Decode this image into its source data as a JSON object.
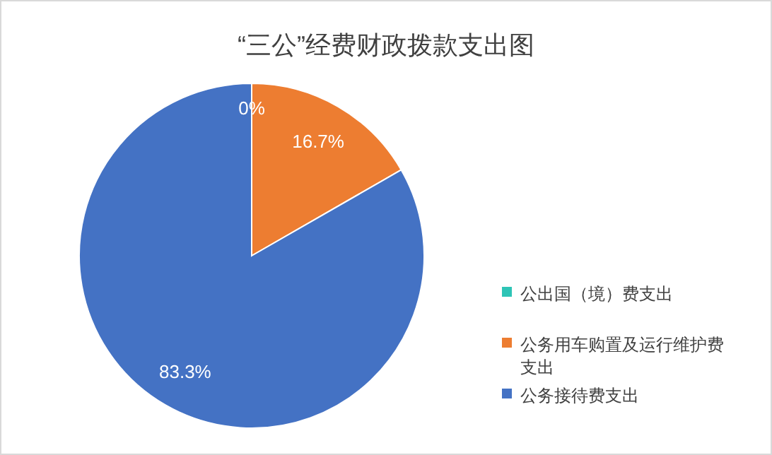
{
  "chart_data": {
    "type": "pie",
    "title": "“三公”经费财政拨款支出图",
    "categories": [
      "公出国（境）费支出",
      "公务用车购置及运行维护费支出",
      "公务接待费支出"
    ],
    "values": [
      0,
      16.7,
      83.3
    ],
    "colors": [
      "#2ec4b6",
      "#ed7d31",
      "#4472c4"
    ],
    "value_labels": [
      "0%",
      "16.7%",
      "83.3%"
    ],
    "legend": "right"
  }
}
